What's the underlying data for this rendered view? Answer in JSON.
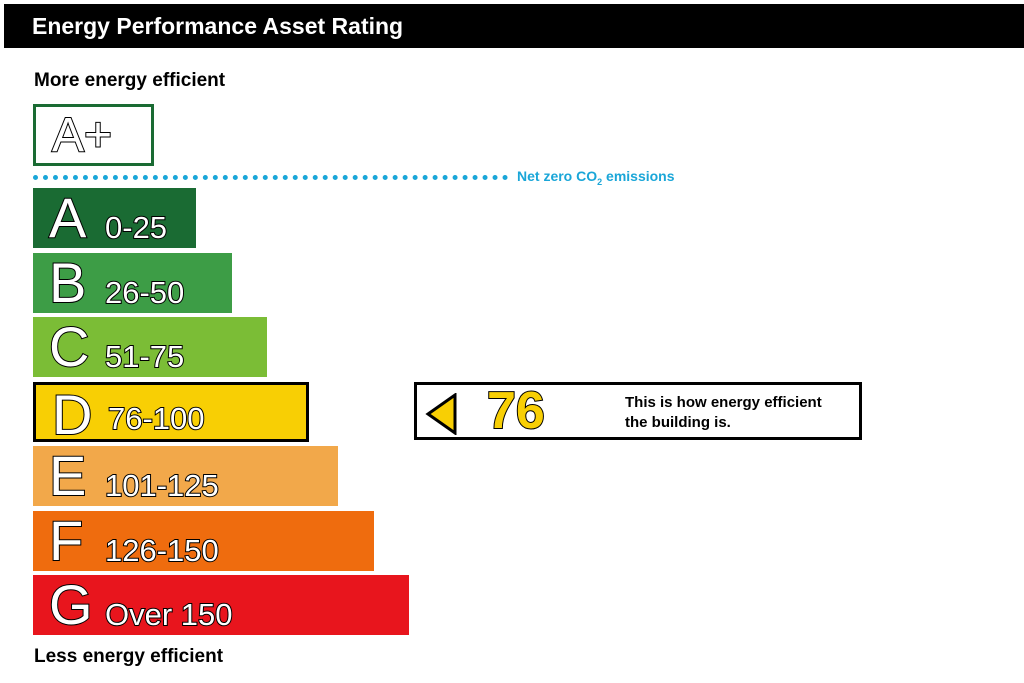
{
  "header": {
    "title": "Energy Performance Asset Rating"
  },
  "labels": {
    "more": "More energy efficient",
    "less": "Less energy efficient"
  },
  "aplus": {
    "label": "A+",
    "border_color": "#1a6b33"
  },
  "net_zero": {
    "prefix": "Net zero CO",
    "sub": "2",
    "suffix": " emissions",
    "color": "#1aa6d8"
  },
  "chart_data": {
    "type": "bar",
    "categories": [
      "A",
      "B",
      "C",
      "D",
      "E",
      "F",
      "G"
    ],
    "ranges": [
      "0-25",
      "26-50",
      "51-75",
      "76-100",
      "101-125",
      "126-150",
      "Over 150"
    ],
    "colors": [
      "#1a6b33",
      "#3d9d46",
      "#7bbd36",
      "#f8cf04",
      "#f2a84a",
      "#ef6c0e",
      "#e8151d"
    ],
    "current_band": "D",
    "current_rating": 76,
    "rating_text": [
      "This is how energy efficient",
      "the building is."
    ]
  }
}
